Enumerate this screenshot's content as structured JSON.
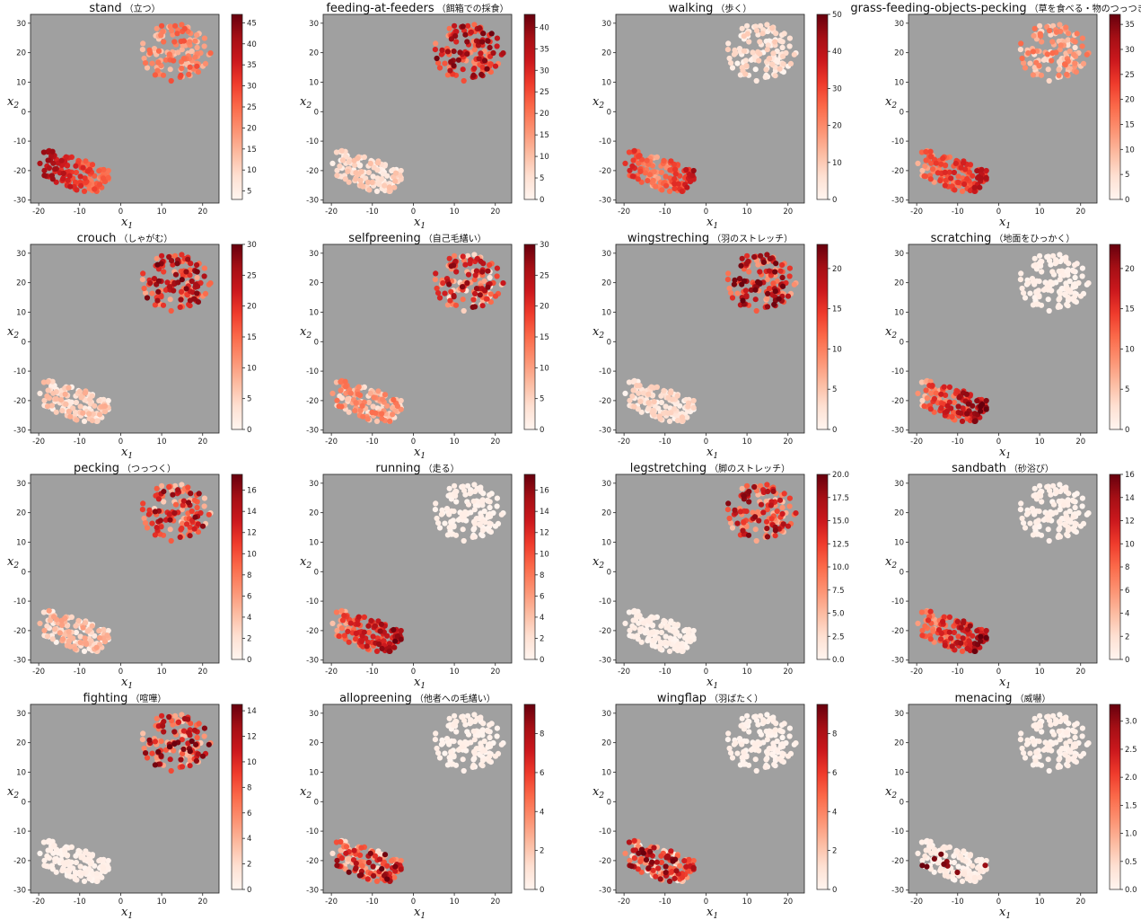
{
  "figure": {
    "colormap": [
      "#fff5f0",
      "#fee0d2",
      "#fcbba1",
      "#fc9272",
      "#fb6a4a",
      "#ef3b2c",
      "#cb181d",
      "#a50f15",
      "#67000d"
    ],
    "axes_background": "#a0a0a0",
    "xlabel": "x",
    "xlabel_sub": "1",
    "ylabel": "x",
    "ylabel_sub": "2",
    "xticks": [
      -20,
      -10,
      0,
      10,
      20
    ],
    "yticks": [
      30,
      20,
      10,
      0,
      -10,
      -20,
      -30
    ],
    "xlim": [
      -22,
      24
    ],
    "ylim": [
      -31,
      33
    ]
  },
  "clusters": {
    "upper": {
      "x": [
        5,
        22
      ],
      "y": [
        10,
        30
      ]
    },
    "lower": {
      "x": [
        -21,
        -3
      ],
      "y": [
        -27,
        -11
      ]
    }
  },
  "chart_data": [
    {
      "type": "scatter",
      "title": "stand",
      "title_jp": "（立つ）",
      "colorbar_ticks": [
        "5",
        "10",
        "15",
        "20",
        "25",
        "30",
        "35",
        "40",
        "45"
      ],
      "colorbar_range": [
        3,
        47
      ],
      "upper_level": [
        0.2,
        0.6
      ],
      "lower_level": [
        0.3,
        0.9
      ],
      "lower_hot": "left"
    },
    {
      "type": "scatter",
      "title": "feeding-at-feeders",
      "title_jp": "（餌箱での採食）",
      "colorbar_ticks": [
        "0",
        "5",
        "10",
        "15",
        "20",
        "25",
        "30",
        "35",
        "40"
      ],
      "colorbar_range": [
        0,
        43
      ],
      "upper_level": [
        0.35,
        1.0
      ],
      "lower_level": [
        0.0,
        0.25
      ],
      "lower_hot": "none"
    },
    {
      "type": "scatter",
      "title": "walking",
      "title_jp": "（歩く）",
      "colorbar_ticks": [
        "0",
        "10",
        "20",
        "30",
        "40",
        "50"
      ],
      "colorbar_range": [
        0,
        50
      ],
      "upper_level": [
        0.0,
        0.2
      ],
      "lower_level": [
        0.2,
        0.9
      ],
      "lower_hot": "edges"
    },
    {
      "type": "scatter",
      "title": "grass-feeding-objects-pecking",
      "title_jp": "（草を食べる・物のつっつき）",
      "colorbar_ticks": [
        "0",
        "5",
        "10",
        "15",
        "20",
        "25",
        "30",
        "35"
      ],
      "colorbar_range": [
        0,
        37
      ],
      "upper_level": [
        0.1,
        0.5
      ],
      "lower_level": [
        0.2,
        0.85
      ],
      "lower_hot": "right"
    },
    {
      "type": "scatter",
      "title": "crouch",
      "title_jp": "（しゃがむ）",
      "colorbar_ticks": [
        "0",
        "5",
        "10",
        "15",
        "20",
        "25",
        "30"
      ],
      "colorbar_range": [
        0,
        30
      ],
      "upper_level": [
        0.3,
        1.0
      ],
      "lower_level": [
        0.0,
        0.3
      ],
      "lower_hot": "none"
    },
    {
      "type": "scatter",
      "title": "selfpreening",
      "title_jp": "（自己毛繕い）",
      "colorbar_ticks": [
        "0",
        "5",
        "10",
        "15",
        "20",
        "25",
        "30"
      ],
      "colorbar_range": [
        0,
        30
      ],
      "upper_level": [
        0.1,
        0.95
      ],
      "lower_level": [
        0.1,
        0.5
      ],
      "lower_hot": "none"
    },
    {
      "type": "scatter",
      "title": "wingstreching",
      "title_jp": "（羽のストレッチ）",
      "colorbar_ticks": [
        "0",
        "5",
        "10",
        "15",
        "20"
      ],
      "colorbar_range": [
        0,
        23
      ],
      "upper_level": [
        0.3,
        1.0
      ],
      "lower_level": [
        0.0,
        0.2
      ],
      "lower_hot": "none"
    },
    {
      "type": "scatter",
      "title": "scratching",
      "title_jp": "（地面をひっかく）",
      "colorbar_ticks": [
        "0",
        "5",
        "10",
        "15",
        "20"
      ],
      "colorbar_range": [
        0,
        23
      ],
      "upper_level": [
        0.0,
        0.05
      ],
      "lower_level": [
        0.1,
        1.0
      ],
      "lower_hot": "right"
    },
    {
      "type": "scatter",
      "title": "pecking",
      "title_jp": "（つっつく）",
      "colorbar_ticks": [
        "0",
        "2",
        "4",
        "6",
        "8",
        "10",
        "12",
        "14",
        "16"
      ],
      "colorbar_range": [
        0,
        17.5
      ],
      "upper_level": [
        0.15,
        0.95
      ],
      "lower_level": [
        0.0,
        0.35
      ],
      "lower_hot": "none"
    },
    {
      "type": "scatter",
      "title": "running",
      "title_jp": "（走る）",
      "colorbar_ticks": [
        "0",
        "2",
        "4",
        "6",
        "8",
        "10",
        "12",
        "14",
        "16"
      ],
      "colorbar_range": [
        0,
        17.5
      ],
      "upper_level": [
        0.0,
        0.05
      ],
      "lower_level": [
        0.15,
        1.0
      ],
      "lower_hot": "right"
    },
    {
      "type": "scatter",
      "title": "legstretching",
      "title_jp": "（脚のストレッチ）",
      "colorbar_ticks": [
        "0.0",
        "2.5",
        "5.0",
        "7.5",
        "10.0",
        "12.5",
        "15.0",
        "17.5",
        "20.0"
      ],
      "colorbar_range": [
        0,
        20
      ],
      "upper_level": [
        0.2,
        0.95
      ],
      "lower_level": [
        0.0,
        0.05
      ],
      "lower_hot": "none"
    },
    {
      "type": "scatter",
      "title": "sandbath",
      "title_jp": "（砂浴び）",
      "colorbar_ticks": [
        "0",
        "2",
        "4",
        "6",
        "8",
        "10",
        "12",
        "14",
        "16"
      ],
      "colorbar_range": [
        0,
        16
      ],
      "upper_level": [
        0.0,
        0.05
      ],
      "lower_level": [
        0.15,
        1.0
      ],
      "lower_hot": "right"
    },
    {
      "type": "scatter",
      "title": "fighting",
      "title_jp": "（喧嘩）",
      "colorbar_ticks": [
        "0",
        "2",
        "4",
        "6",
        "8",
        "10",
        "12",
        "14"
      ],
      "colorbar_range": [
        0,
        14.5
      ],
      "upper_level": [
        0.2,
        1.0
      ],
      "lower_level": [
        0.0,
        0.05
      ],
      "lower_hot": "none"
    },
    {
      "type": "scatter",
      "title": "allopreening",
      "title_jp": "（他者への毛繕い）",
      "colorbar_ticks": [
        "0",
        "2",
        "4",
        "6",
        "8"
      ],
      "colorbar_range": [
        0,
        9.5
      ],
      "upper_level": [
        0.0,
        0.05
      ],
      "lower_level": [
        0.1,
        1.0
      ],
      "lower_hot": "none"
    },
    {
      "type": "scatter",
      "title": "wingflap",
      "title_jp": "（羽ばたく）",
      "colorbar_ticks": [
        "0",
        "2",
        "4",
        "6",
        "8"
      ],
      "colorbar_range": [
        0,
        9.5
      ],
      "upper_level": [
        0.0,
        0.05
      ],
      "lower_level": [
        0.0,
        1.0
      ],
      "lower_hot": "none"
    },
    {
      "type": "scatter",
      "title": "menacing",
      "title_jp": "（威嚇）",
      "colorbar_ticks": [
        "0.0",
        "0.5",
        "1.0",
        "1.5",
        "2.0",
        "2.5",
        "3.0"
      ],
      "colorbar_range": [
        0,
        3.3
      ],
      "upper_level": [
        0.0,
        0.05
      ],
      "lower_level": [
        0.0,
        0.1
      ],
      "lower_hot": "sparse"
    }
  ]
}
